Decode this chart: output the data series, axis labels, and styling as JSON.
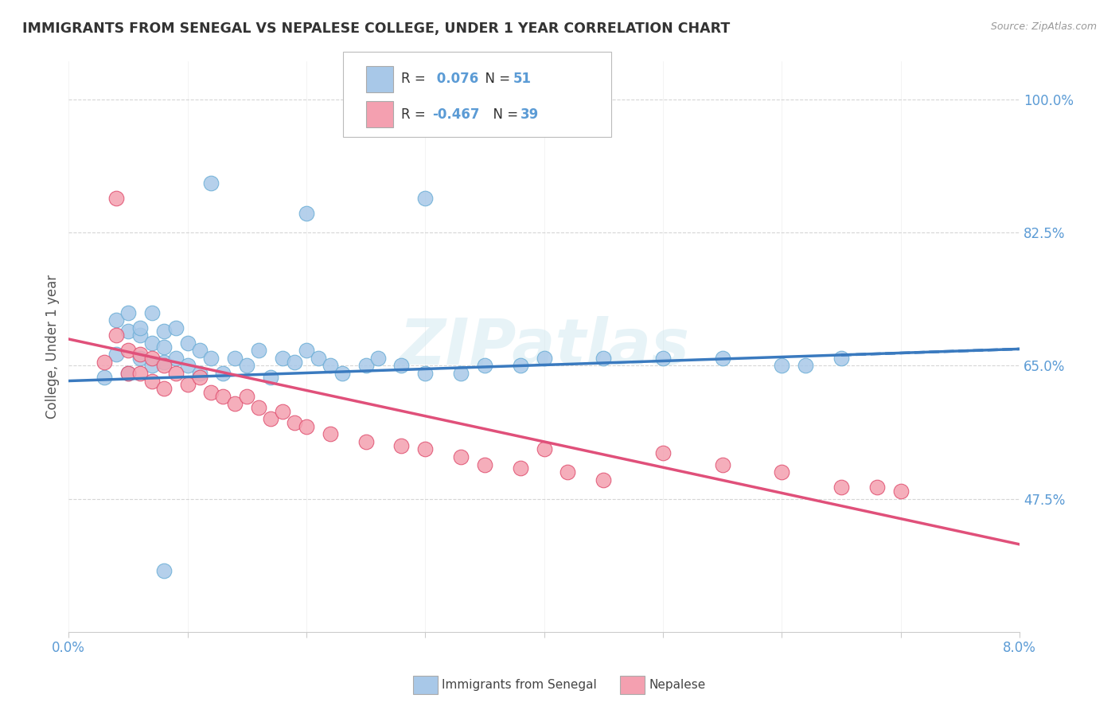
{
  "title": "IMMIGRANTS FROM SENEGAL VS NEPALESE COLLEGE, UNDER 1 YEAR CORRELATION CHART",
  "source": "Source: ZipAtlas.com",
  "ylabel": "College, Under 1 year",
  "xlim": [
    0.0,
    0.08
  ],
  "ylim": [
    0.3,
    1.05
  ],
  "yticks": [
    0.475,
    0.65,
    0.825,
    1.0
  ],
  "ytick_labels": [
    "47.5%",
    "65.0%",
    "82.5%",
    "100.0%"
  ],
  "xtick_show": [
    "0.0%",
    "8.0%"
  ],
  "blue_color": "#a8c8e8",
  "pink_color": "#f4a0b0",
  "blue_edge_color": "#6baed6",
  "pink_edge_color": "#e05070",
  "blue_line_color": "#3a7abf",
  "pink_line_color": "#e0507a",
  "axis_color": "#5b9bd5",
  "background_color": "#ffffff",
  "watermark": "ZIPatlas",
  "blue_r": "0.076",
  "blue_n": "51",
  "pink_r": "-0.467",
  "pink_n": "39",
  "blue_scatter_x": [
    0.003,
    0.004,
    0.004,
    0.005,
    0.005,
    0.005,
    0.006,
    0.006,
    0.006,
    0.007,
    0.007,
    0.007,
    0.008,
    0.008,
    0.008,
    0.009,
    0.009,
    0.01,
    0.01,
    0.011,
    0.011,
    0.012,
    0.013,
    0.014,
    0.015,
    0.016,
    0.017,
    0.018,
    0.019,
    0.02,
    0.021,
    0.022,
    0.023,
    0.025,
    0.026,
    0.028,
    0.03,
    0.033,
    0.035,
    0.038,
    0.04,
    0.045,
    0.05,
    0.055,
    0.06,
    0.062,
    0.065,
    0.02,
    0.03,
    0.012,
    0.008
  ],
  "blue_scatter_y": [
    0.635,
    0.665,
    0.71,
    0.72,
    0.695,
    0.64,
    0.66,
    0.69,
    0.7,
    0.65,
    0.68,
    0.72,
    0.695,
    0.675,
    0.655,
    0.66,
    0.7,
    0.68,
    0.65,
    0.67,
    0.64,
    0.66,
    0.64,
    0.66,
    0.65,
    0.67,
    0.635,
    0.66,
    0.655,
    0.67,
    0.66,
    0.65,
    0.64,
    0.65,
    0.66,
    0.65,
    0.64,
    0.64,
    0.65,
    0.65,
    0.66,
    0.66,
    0.66,
    0.66,
    0.65,
    0.65,
    0.66,
    0.85,
    0.87,
    0.89,
    0.38
  ],
  "pink_scatter_x": [
    0.003,
    0.004,
    0.004,
    0.005,
    0.005,
    0.006,
    0.006,
    0.007,
    0.007,
    0.008,
    0.008,
    0.009,
    0.01,
    0.011,
    0.012,
    0.013,
    0.014,
    0.015,
    0.016,
    0.017,
    0.018,
    0.019,
    0.02,
    0.022,
    0.025,
    0.028,
    0.03,
    0.033,
    0.035,
    0.038,
    0.04,
    0.042,
    0.045,
    0.05,
    0.055,
    0.06,
    0.065,
    0.068,
    0.07
  ],
  "pink_scatter_y": [
    0.655,
    0.87,
    0.69,
    0.67,
    0.64,
    0.665,
    0.64,
    0.66,
    0.63,
    0.65,
    0.62,
    0.64,
    0.625,
    0.635,
    0.615,
    0.61,
    0.6,
    0.61,
    0.595,
    0.58,
    0.59,
    0.575,
    0.57,
    0.56,
    0.55,
    0.545,
    0.54,
    0.53,
    0.52,
    0.515,
    0.54,
    0.51,
    0.5,
    0.535,
    0.52,
    0.51,
    0.49,
    0.49,
    0.485
  ],
  "blue_trend_x": [
    0.0,
    0.08
  ],
  "blue_trend_y": [
    0.63,
    0.672
  ],
  "pink_trend_x": [
    0.0,
    0.08
  ],
  "pink_trend_y": [
    0.685,
    0.415
  ]
}
